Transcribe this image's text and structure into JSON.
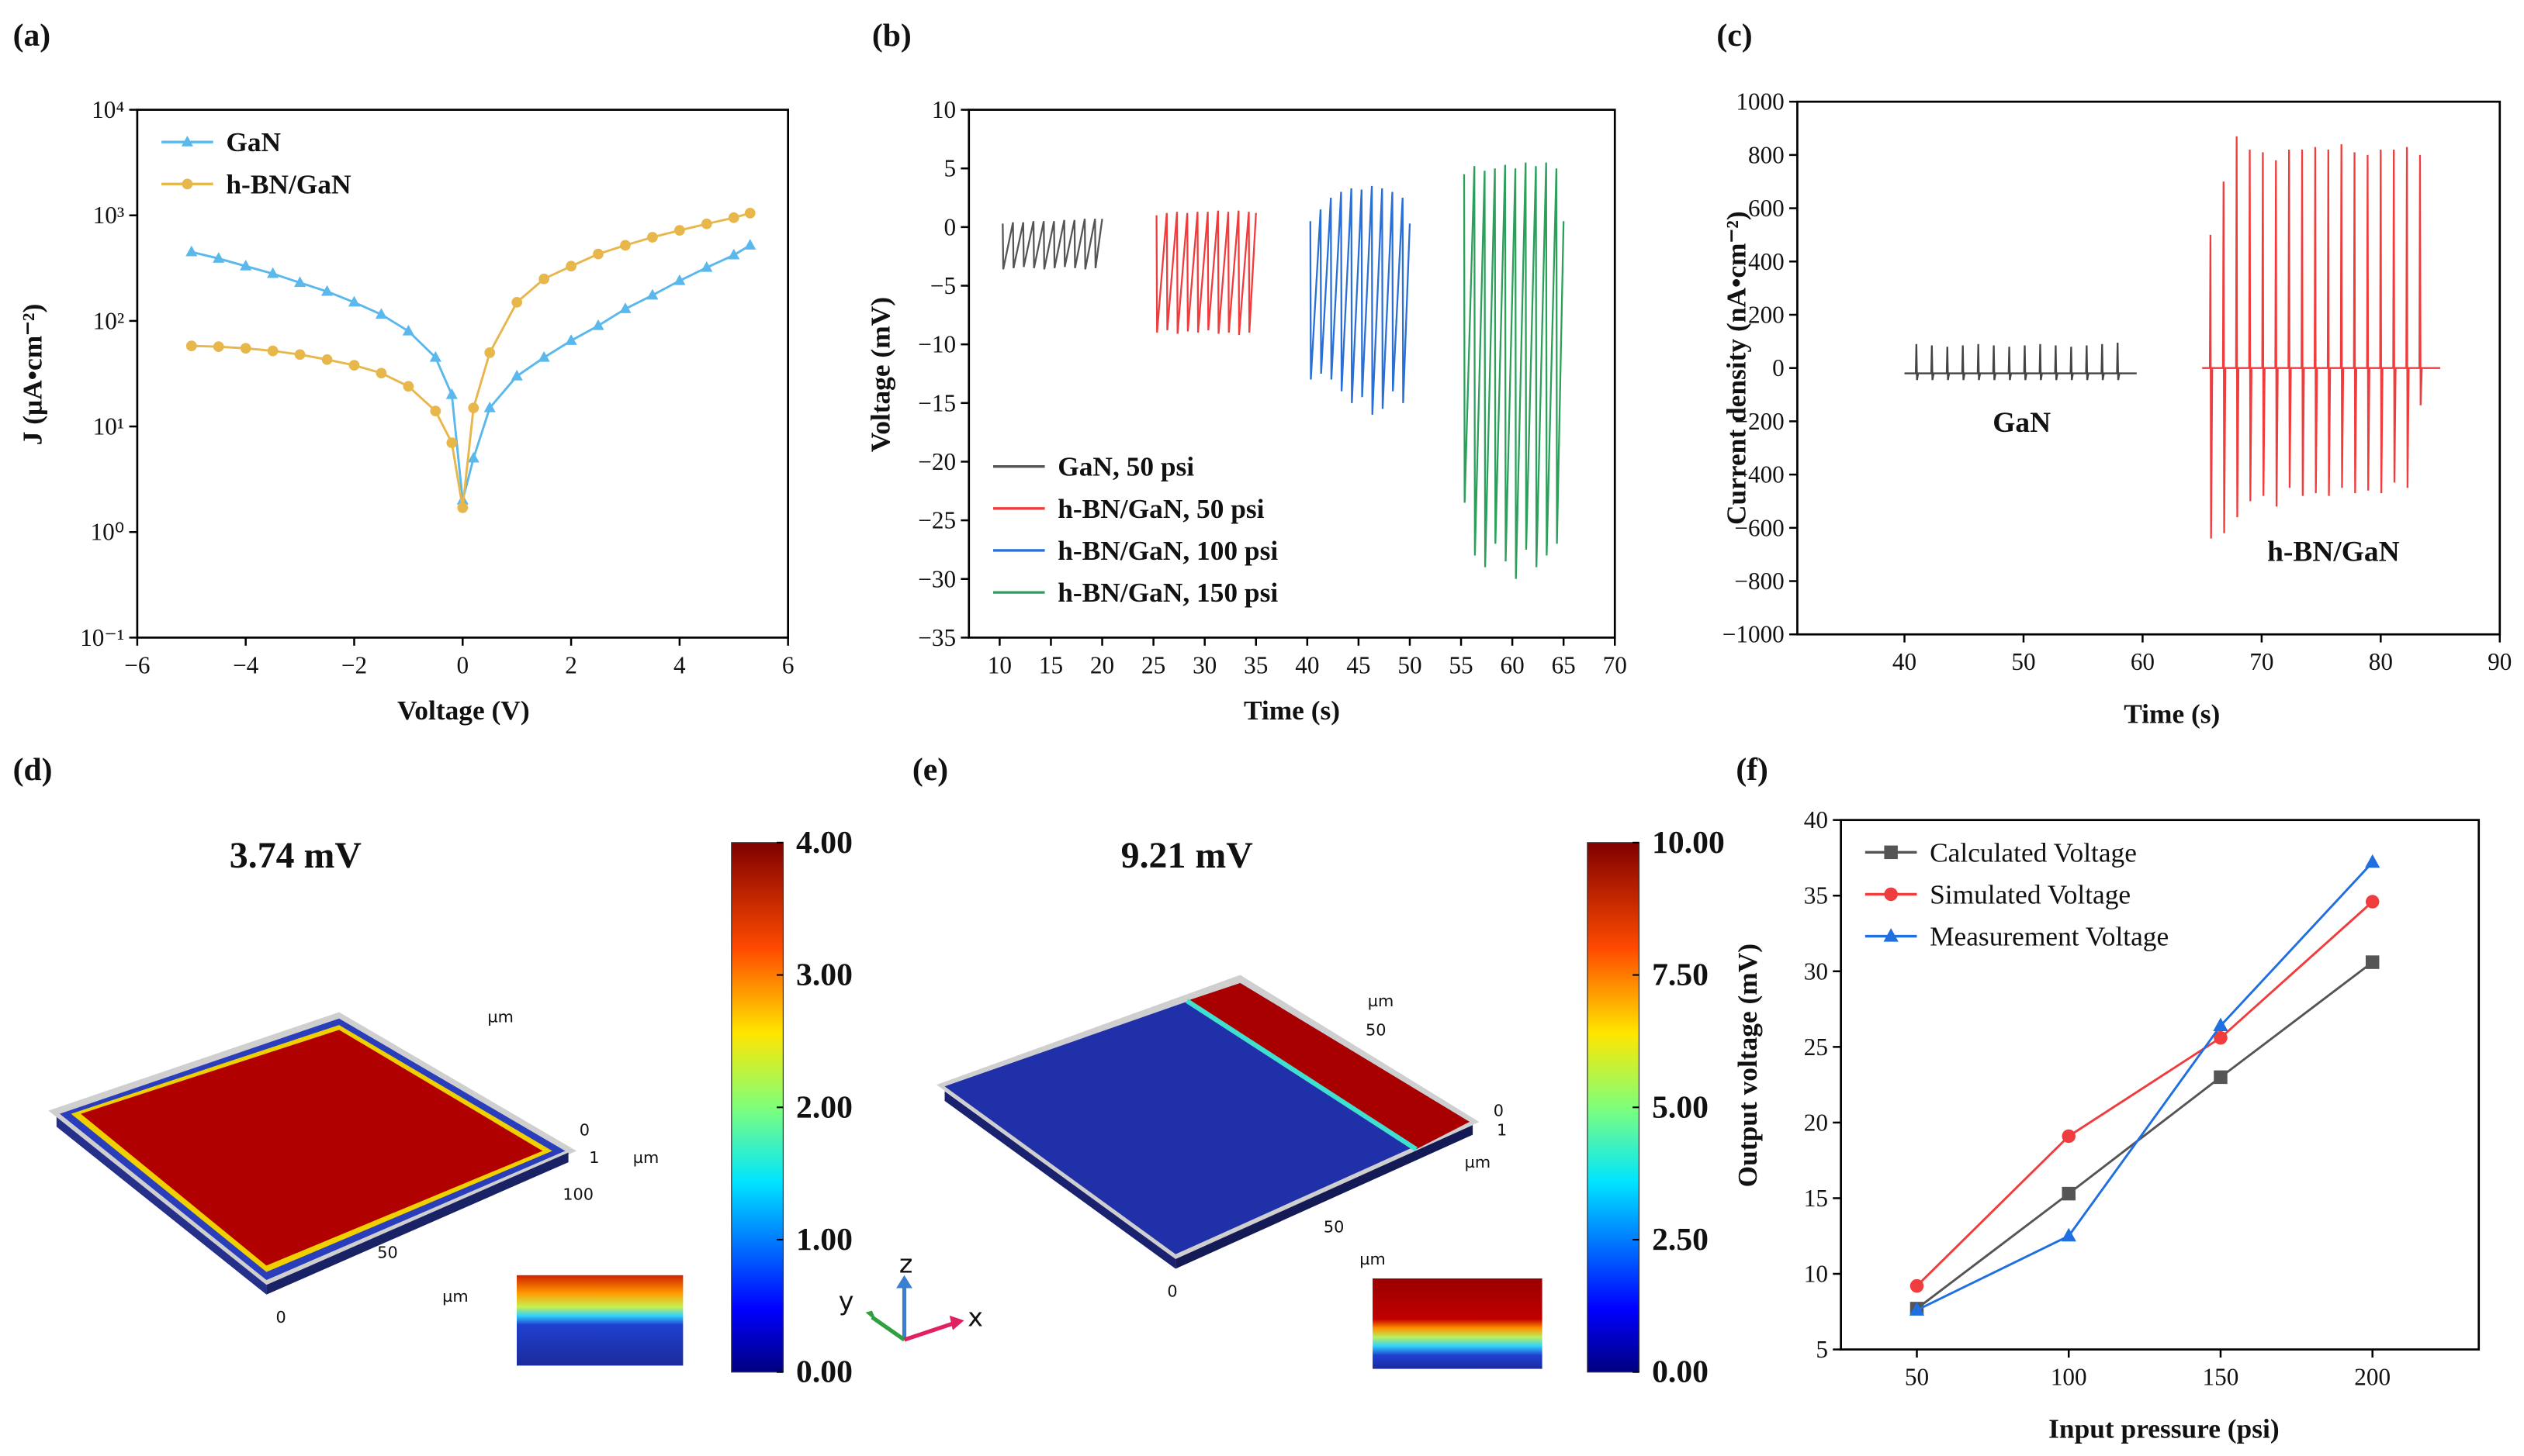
{
  "chart_data": [
    {
      "type": "line",
      "panel_label": "(a)",
      "x_label": "Voltage (V)",
      "y_label": "J (μA•cm⁻²)",
      "xlim": [
        -6,
        6
      ],
      "xticks": [
        {
          "value": -6,
          "label": "−6"
        },
        {
          "value": -4,
          "label": "−4"
        },
        {
          "value": -2,
          "label": "−2"
        },
        0,
        2,
        4,
        6
      ],
      "ylog": true,
      "ylim": [
        0.1,
        10000
      ],
      "yticks": [
        {
          "value": 0.1,
          "label": "10⁻¹"
        },
        {
          "value": 1,
          "label": "10⁰"
        },
        {
          "value": 10,
          "label": "10¹"
        },
        {
          "value": 100,
          "label": "10²"
        },
        {
          "value": 1000,
          "label": "10³"
        },
        {
          "value": 10000,
          "label": "10⁴"
        }
      ],
      "legend": "upper left",
      "x": [
        -5,
        -4.5,
        -4,
        -3.5,
        -3,
        -2.5,
        -2,
        -1.5,
        -1,
        -0.5,
        -0.2,
        0,
        0.2,
        0.5,
        1,
        1.5,
        2,
        2.5,
        3,
        3.5,
        4,
        4.5,
        5,
        5.3
      ],
      "series": [
        {
          "name": "GaN",
          "color": "#5bb8ec",
          "marker": "triangle",
          "values": [
            450,
            390,
            330,
            280,
            230,
            190,
            150,
            115,
            80,
            45,
            20,
            2,
            5,
            15,
            30,
            45,
            65,
            90,
            130,
            175,
            240,
            320,
            420,
            520
          ]
        },
        {
          "name": "h-BN/GaN",
          "color": "#e8b74c",
          "marker": "circle",
          "values": [
            58,
            57,
            55,
            52,
            48,
            43,
            38,
            32,
            24,
            14,
            7,
            1.7,
            15,
            50,
            150,
            250,
            330,
            430,
            520,
            620,
            720,
            830,
            950,
            1050
          ]
        }
      ]
    },
    {
      "type": "line",
      "panel_label": "(b)",
      "x_label": "Time (s)",
      "y_label": "Voltage (mV)",
      "xlim": [
        7,
        70
      ],
      "xticks": [
        10,
        15,
        20,
        25,
        30,
        35,
        40,
        45,
        50,
        55,
        60,
        65,
        70
      ],
      "ylim": [
        -35,
        10
      ],
      "yticks": [
        {
          "value": -35,
          "label": "−35"
        },
        {
          "value": -30,
          "label": "−30"
        },
        {
          "value": -25,
          "label": "−25"
        },
        {
          "value": -20,
          "label": "−20"
        },
        {
          "value": -15,
          "label": "−15"
        },
        {
          "value": -10,
          "label": "−10"
        },
        {
          "value": -5,
          "label": "−5"
        },
        0,
        5,
        10
      ],
      "legend": "lower left",
      "series": [
        {
          "name": "GaN, 50 psi",
          "color": "#555555",
          "x": [
            10.3,
            10.35,
            11.3,
            11.35,
            12.3,
            12.35,
            13.3,
            13.35,
            14.3,
            14.35,
            15.3,
            15.35,
            16.3,
            16.35,
            17.3,
            17.35,
            18.3,
            18.35,
            19.3,
            19.35,
            20
          ],
          "values": [
            0.3,
            -3.6,
            0.4,
            -3.5,
            0.4,
            -3.4,
            0.5,
            -3.5,
            0.5,
            -3.6,
            0.5,
            -3.5,
            0.6,
            -3.4,
            0.6,
            -3.5,
            0.7,
            -3.6,
            0.7,
            -3.5,
            0.7
          ]
        },
        {
          "name": "h-BN/GaN, 50 psi",
          "color": "#f03c3c",
          "x": [
            25.3,
            25.35,
            26.3,
            26.35,
            27.3,
            27.35,
            28.3,
            28.35,
            29.3,
            29.35,
            30.3,
            30.35,
            31.3,
            31.35,
            32.3,
            32.35,
            33.3,
            33.35,
            34.3,
            34.35,
            35
          ],
          "values": [
            1.0,
            -9.0,
            1.2,
            -8.8,
            1.3,
            -9.1,
            1.2,
            -8.9,
            1.3,
            -9.0,
            1.3,
            -8.8,
            1.4,
            -9.1,
            1.3,
            -9.0,
            1.4,
            -9.2,
            1.3,
            -9.0,
            1.2
          ]
        },
        {
          "name": "h-BN/GaN, 100 psi",
          "color": "#2a6fd6",
          "x": [
            40.3,
            40.35,
            41.3,
            41.35,
            42.3,
            42.35,
            43.3,
            43.35,
            44.3,
            44.35,
            45.3,
            45.35,
            46.3,
            46.35,
            47.3,
            47.35,
            48.3,
            48.35,
            49.3,
            49.35,
            50
          ],
          "values": [
            0.5,
            -13,
            1.5,
            -12.5,
            2.5,
            -13,
            3,
            -14,
            3.3,
            -15,
            3.2,
            -14.5,
            3.5,
            -16,
            3.3,
            -15.5,
            3,
            -14,
            2.5,
            -15,
            0.3
          ]
        },
        {
          "name": "h-BN/GaN, 150 psi",
          "color": "#2ca05a",
          "x": [
            55.3,
            55.35,
            56.3,
            56.35,
            57.3,
            57.35,
            58.3,
            58.35,
            59.3,
            59.35,
            60.3,
            60.35,
            61.3,
            61.35,
            62.3,
            62.35,
            63.3,
            63.35,
            64.3,
            64.35,
            65
          ],
          "values": [
            4.5,
            -23.5,
            5.2,
            -28,
            4.8,
            -29,
            5,
            -27,
            5.3,
            -28.5,
            5,
            -30,
            5.5,
            -27.5,
            5.2,
            -29,
            5.5,
            -28,
            5,
            -27,
            0.5
          ]
        }
      ]
    },
    {
      "type": "line",
      "panel_label": "(c)",
      "x_label": "Time (s)",
      "y_label": "Current density (nA•cm⁻²)",
      "xlim": [
        31,
        90
      ],
      "xticks": [
        40,
        50,
        60,
        70,
        80,
        90
      ],
      "ylim": [
        -1000,
        1000
      ],
      "yticks": [
        {
          "value": -1000,
          "label": "−1000"
        },
        {
          "value": -800,
          "label": "−800"
        },
        {
          "value": -600,
          "label": "−600"
        },
        {
          "value": -400,
          "label": "−400"
        },
        {
          "value": -200,
          "label": "−200"
        },
        0,
        200,
        400,
        600,
        800,
        1000
      ],
      "annotations": [
        {
          "text": "GaN",
          "color": "#222222"
        },
        {
          "text": "h-BN/GaN",
          "color": "#f03c3c"
        }
      ],
      "series": [
        {
          "color": "#444444",
          "x": [
            40,
            40.95,
            41,
            41.05,
            41.15,
            42.25,
            42.3,
            42.35,
            42.45,
            43.55,
            43.6,
            43.65,
            43.75,
            44.85,
            44.9,
            44.95,
            45.05,
            46.15,
            46.2,
            46.25,
            46.35,
            47.45,
            47.5,
            47.55,
            47.65,
            48.75,
            48.8,
            48.85,
            48.95,
            50.05,
            50.1,
            50.15,
            50.25,
            51.35,
            51.4,
            51.45,
            51.55,
            52.65,
            52.7,
            52.75,
            52.85,
            53.95,
            54,
            54.05,
            54.15,
            55.25,
            55.3,
            55.35,
            55.45,
            56.55,
            56.6,
            56.65,
            56.75,
            57.85,
            57.9,
            57.95,
            58.05,
            59.5
          ],
          "values": [
            -20,
            -20,
            90,
            -45,
            -20,
            -20,
            85,
            -45,
            -20,
            -20,
            80,
            -45,
            -20,
            -20,
            85,
            -45,
            -20,
            -20,
            90,
            -45,
            -20,
            -20,
            85,
            -45,
            -20,
            -20,
            80,
            -45,
            -20,
            -20,
            85,
            -45,
            -20,
            -20,
            90,
            -45,
            -20,
            -20,
            85,
            -45,
            -20,
            -20,
            80,
            -45,
            -20,
            -20,
            85,
            -45,
            -20,
            -20,
            90,
            -45,
            -20,
            -20,
            95,
            -45,
            -20,
            -20
          ]
        },
        {
          "color": "#f03c3c",
          "x": [
            65,
            65.65,
            65.7,
            65.75,
            65.85,
            66.75,
            66.8,
            66.85,
            66.95,
            67.85,
            67.9,
            67.95,
            68.05,
            68.95,
            69,
            69.05,
            69.15,
            70.05,
            70.1,
            70.15,
            70.25,
            71.15,
            71.2,
            71.25,
            71.35,
            72.25,
            72.3,
            72.35,
            72.45,
            73.35,
            73.4,
            73.45,
            73.55,
            74.45,
            74.5,
            74.55,
            74.65,
            75.55,
            75.6,
            75.65,
            75.75,
            76.65,
            76.7,
            76.75,
            76.85,
            77.75,
            77.8,
            77.85,
            77.95,
            78.85,
            78.9,
            78.95,
            79.05,
            79.95,
            80,
            80.05,
            80.15,
            81.05,
            81.1,
            81.15,
            81.25,
            82.15,
            82.2,
            82.25,
            82.35,
            83.25,
            83.3,
            83.35,
            83.45,
            85
          ],
          "values": [
            0,
            0,
            500,
            -640,
            0,
            0,
            700,
            -620,
            0,
            0,
            870,
            -560,
            0,
            0,
            820,
            -500,
            0,
            0,
            810,
            -480,
            0,
            0,
            780,
            -520,
            0,
            0,
            820,
            -450,
            0,
            0,
            820,
            -480,
            0,
            0,
            830,
            -470,
            0,
            0,
            820,
            -480,
            0,
            0,
            840,
            -450,
            0,
            0,
            810,
            -470,
            0,
            0,
            800,
            -460,
            0,
            0,
            820,
            -470,
            0,
            0,
            820,
            -430,
            0,
            0,
            830,
            -450,
            0,
            0,
            800,
            -140,
            0,
            0
          ]
        }
      ]
    },
    {
      "type": "contour",
      "panel_label": "(d)",
      "annotation": "3.74 mV",
      "annotation_color": "#a31010",
      "clim": [
        0,
        4
      ],
      "cticks": [
        {
          "value": 0,
          "label": "0.00"
        },
        {
          "value": 1,
          "label": "1.00"
        },
        {
          "value": 2,
          "label": "2.00"
        },
        {
          "value": 3,
          "label": "3.00"
        },
        {
          "value": 4,
          "label": "4.00"
        }
      ],
      "axis_labels": [
        "µm",
        "0",
        "1",
        "µm",
        "100",
        "50",
        "µm",
        "0"
      ]
    },
    {
      "type": "contour",
      "panel_label": "(e)",
      "annotation": "9.21 mV",
      "annotation_color": "#a31010",
      "clim": [
        0,
        10
      ],
      "cticks": [
        {
          "value": 0,
          "label": "0.00"
        },
        {
          "value": 2.5,
          "label": "2.50"
        },
        {
          "value": 5,
          "label": "5.00"
        },
        {
          "value": 7.5,
          "label": "7.50"
        },
        {
          "value": 10,
          "label": "10.00"
        }
      ],
      "axis_labels": [
        "µm",
        "50",
        "0",
        "1",
        "µm",
        "50",
        "µm",
        "0",
        "z",
        "y",
        "x"
      ]
    },
    {
      "type": "line",
      "panel_label": "(f)",
      "x_label": "Input pressure (psi)",
      "y_label": "Output voltage (mV)",
      "xlim": [
        25,
        235
      ],
      "xticks": [
        50,
        100,
        150,
        200
      ],
      "ylim": [
        5,
        40
      ],
      "yticks": [
        5,
        10,
        15,
        20,
        25,
        30,
        35,
        40
      ],
      "legend": "upper left",
      "x": [
        50,
        100,
        150,
        200
      ],
      "series": [
        {
          "name": "Calculated Voltage",
          "color": "#555555",
          "marker": "square",
          "values": [
            7.7,
            15.3,
            23,
            30.6
          ]
        },
        {
          "name": "Simulated Voltage",
          "color": "#f03c3c",
          "marker": "circle",
          "values": [
            9.2,
            19.1,
            25.6,
            34.6
          ]
        },
        {
          "name": "Measurement Voltage",
          "color": "#1f6fe0",
          "marker": "triangle",
          "values": [
            7.6,
            12.5,
            26.4,
            37.2
          ]
        }
      ]
    }
  ]
}
